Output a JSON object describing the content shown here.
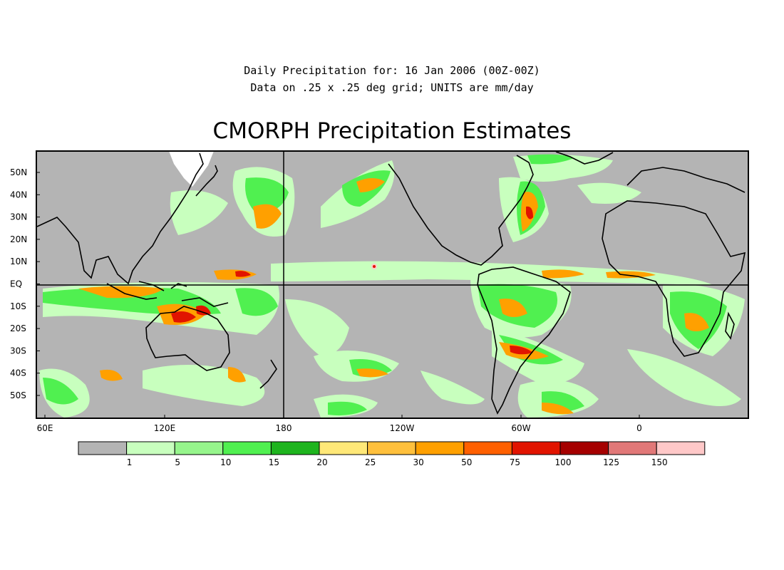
{
  "header": {
    "line1": "Daily Precipitation for: 16 Jan 2006 (00Z-00Z)",
    "line2": "Data on .25 x .25 deg grid; UNITS are mm/day"
  },
  "title": "CMORPH Precipitation Estimates",
  "map": {
    "lon_ticks": [
      "60E",
      "120E",
      "180",
      "120W",
      "60W",
      "0"
    ],
    "lat_ticks": [
      "50N",
      "40N",
      "30N",
      "20N",
      "10N",
      "EQ",
      "10S",
      "20S",
      "30S",
      "40S",
      "50S"
    ],
    "background_color": "#b4b4b4",
    "no_data_color": "#ffffff",
    "coastline_color": "#000000"
  },
  "legend": {
    "bins": [
      {
        "color": "#b4b4b4",
        "label": ""
      },
      {
        "color": "#c8ffbe",
        "label": "1"
      },
      {
        "color": "#96f58c",
        "label": "5"
      },
      {
        "color": "#50f050",
        "label": "10"
      },
      {
        "color": "#1eb41e",
        "label": "15"
      },
      {
        "color": "#ffe878",
        "label": "20"
      },
      {
        "color": "#ffc03c",
        "label": "25"
      },
      {
        "color": "#ffa000",
        "label": "30"
      },
      {
        "color": "#ff6000",
        "label": "50"
      },
      {
        "color": "#e11400",
        "label": "75"
      },
      {
        "color": "#a50000",
        "label": "100"
      },
      {
        "color": "#e17878",
        "label": "125"
      },
      {
        "color": "#ffc8c8",
        "label": "150"
      }
    ]
  }
}
